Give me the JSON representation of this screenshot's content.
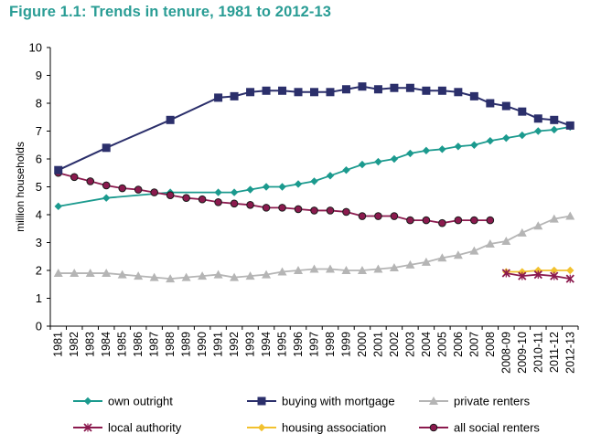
{
  "figure_title": "Figure 1.1: Trends in tenure, 1981 to 2012-13",
  "colors": {
    "own_outright": "#1b9a8e",
    "buying_with_mortgage": "#2b2f6b",
    "private_renters": "#b5b5b5",
    "local_authority": "#8b1a4e",
    "housing_association": "#f2c12e",
    "all_social_renters": "#8b1a4e"
  },
  "chart_data": {
    "type": "line",
    "title": "Figure 1.1: Trends in tenure, 1981 to 2012-13",
    "xlabel": "",
    "ylabel": "million households",
    "ylim": [
      0,
      10
    ],
    "yticks": [
      0,
      1,
      2,
      3,
      4,
      5,
      6,
      7,
      8,
      9,
      10
    ],
    "grid": false,
    "legend_position": "bottom",
    "categories": [
      "1981",
      "1982",
      "1983",
      "1984",
      "1985",
      "1986",
      "1987",
      "1988",
      "1989",
      "1990",
      "1991",
      "1992",
      "1993",
      "1994",
      "1995",
      "1996",
      "1997",
      "1998",
      "1999",
      "2000",
      "2001",
      "2002",
      "2003",
      "2004",
      "2005",
      "2006",
      "2007",
      "2008",
      "2008-09",
      "2009-10",
      "2010-11",
      "2011-12",
      "2012-13"
    ],
    "series": [
      {
        "name": "own outright",
        "key": "own_outright",
        "marker": "diamond",
        "values": [
          4.3,
          null,
          null,
          4.6,
          null,
          null,
          null,
          4.8,
          null,
          null,
          4.8,
          4.8,
          4.9,
          5.0,
          5.0,
          5.1,
          5.2,
          5.4,
          5.6,
          5.8,
          5.9,
          6.0,
          6.2,
          6.3,
          6.35,
          6.45,
          6.5,
          6.65,
          6.75,
          6.85,
          7.0,
          7.05,
          7.15
        ]
      },
      {
        "name": "buying with mortgage",
        "key": "buying_with_mortgage",
        "marker": "square",
        "values": [
          5.6,
          null,
          null,
          6.4,
          null,
          null,
          null,
          7.4,
          null,
          null,
          8.2,
          8.25,
          8.4,
          8.45,
          8.45,
          8.4,
          8.4,
          8.4,
          8.5,
          8.6,
          8.5,
          8.55,
          8.55,
          8.45,
          8.45,
          8.4,
          8.25,
          8.0,
          7.9,
          7.7,
          7.45,
          7.4,
          7.2
        ]
      },
      {
        "name": "private renters",
        "key": "private_renters",
        "marker": "triangle",
        "values": [
          1.9,
          1.9,
          1.9,
          1.9,
          1.85,
          1.8,
          1.75,
          1.7,
          1.75,
          1.8,
          1.85,
          1.75,
          1.8,
          1.85,
          1.95,
          2.0,
          2.05,
          2.05,
          2.0,
          2.0,
          2.05,
          2.1,
          2.2,
          2.3,
          2.45,
          2.55,
          2.7,
          2.95,
          3.05,
          3.35,
          3.6,
          3.85,
          3.95
        ]
      },
      {
        "name": "local authority",
        "key": "local_authority",
        "marker": "x",
        "values": [
          null,
          null,
          null,
          null,
          null,
          null,
          null,
          null,
          null,
          null,
          null,
          null,
          null,
          null,
          null,
          null,
          null,
          null,
          null,
          null,
          null,
          null,
          null,
          null,
          null,
          null,
          null,
          null,
          1.9,
          1.8,
          1.85,
          1.8,
          1.7
        ]
      },
      {
        "name": "housing association",
        "key": "housing_association",
        "marker": "diamond",
        "values": [
          null,
          null,
          null,
          null,
          null,
          null,
          null,
          null,
          null,
          null,
          null,
          null,
          null,
          null,
          null,
          null,
          null,
          null,
          null,
          null,
          null,
          null,
          null,
          null,
          null,
          null,
          null,
          null,
          1.95,
          1.95,
          2.0,
          2.0,
          2.0
        ]
      },
      {
        "name": "all social renters",
        "key": "all_social_renters",
        "marker": "circle",
        "values": [
          5.5,
          5.35,
          5.2,
          5.05,
          4.95,
          4.9,
          4.8,
          4.7,
          4.6,
          4.55,
          4.45,
          4.4,
          4.35,
          4.25,
          4.25,
          4.2,
          4.15,
          4.15,
          4.1,
          3.95,
          3.95,
          3.95,
          3.8,
          3.8,
          3.7,
          3.8,
          3.8,
          3.8,
          null,
          null,
          null,
          null,
          null
        ]
      }
    ]
  }
}
